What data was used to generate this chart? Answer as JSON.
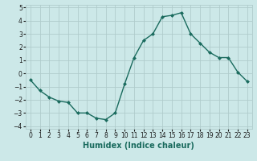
{
  "xlabel": "Humidex (Indice chaleur)",
  "ylabel": "",
  "x": [
    0,
    1,
    2,
    3,
    4,
    5,
    6,
    7,
    8,
    9,
    10,
    11,
    12,
    13,
    14,
    15,
    16,
    17,
    18,
    19,
    20,
    21,
    22,
    23
  ],
  "y": [
    -0.5,
    -1.3,
    -1.8,
    -2.1,
    -2.2,
    -3.0,
    -3.0,
    -3.4,
    -3.5,
    -3.0,
    -0.8,
    1.2,
    2.5,
    3.0,
    4.3,
    4.4,
    4.6,
    3.0,
    2.3,
    1.6,
    1.2,
    1.2,
    0.1,
    -0.6
  ],
  "line_color": "#1a6b5e",
  "marker": "D",
  "marker_size": 2,
  "bg_color": "#cce8e8",
  "grid_color": "#b0cccc",
  "ylim": [
    -4.2,
    5.2
  ],
  "xlim": [
    -0.5,
    23.5
  ],
  "yticks": [
    -4,
    -3,
    -2,
    -1,
    0,
    1,
    2,
    3,
    4,
    5
  ],
  "xticks": [
    0,
    1,
    2,
    3,
    4,
    5,
    6,
    7,
    8,
    9,
    10,
    11,
    12,
    13,
    14,
    15,
    16,
    17,
    18,
    19,
    20,
    21,
    22,
    23
  ],
  "tick_fontsize": 5.5,
  "xlabel_fontsize": 7,
  "linewidth": 1.0
}
